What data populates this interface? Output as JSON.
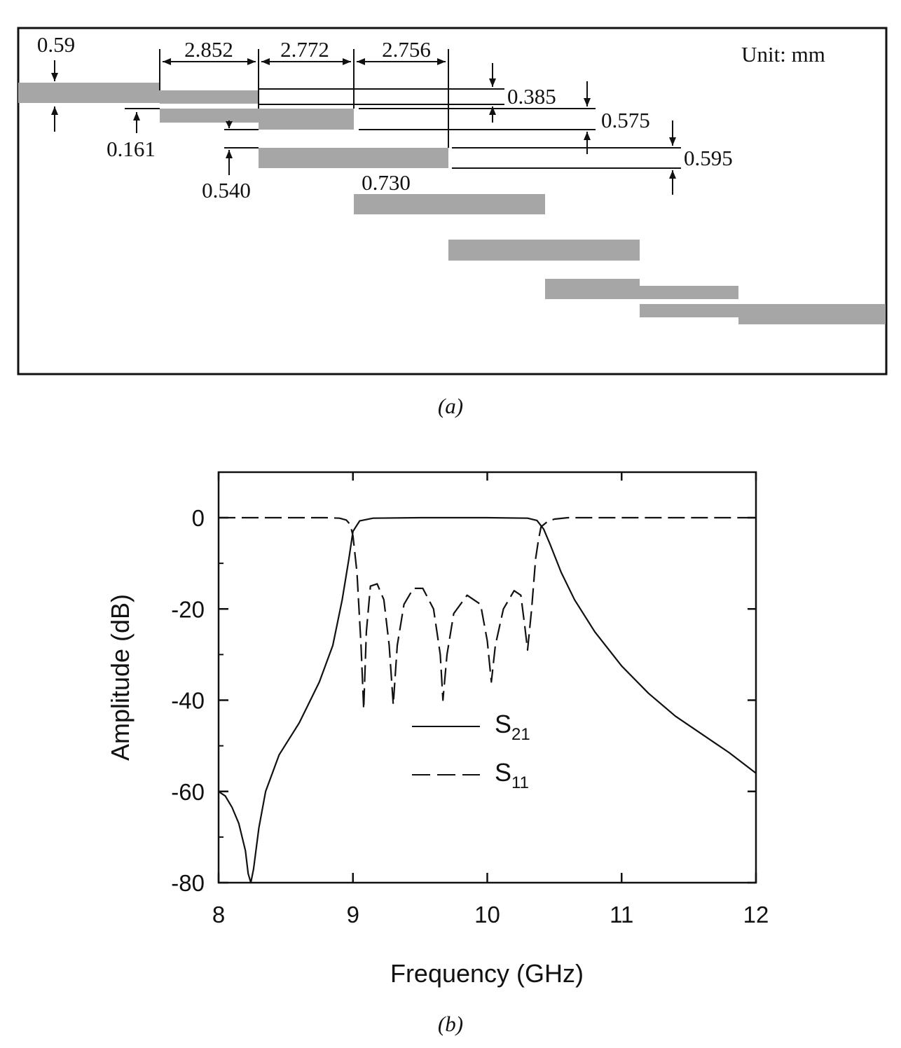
{
  "panel_a": {
    "unit_label": "Unit: mm",
    "caption": "(a)",
    "dims": {
      "w0": "0.59",
      "l1": "2.852",
      "l2": "2.772",
      "l3": "2.756",
      "g1": "0.161",
      "g2": "0.540",
      "g3": "0.730",
      "w1": "0.385",
      "w2": "0.575",
      "w3": "0.595"
    }
  },
  "panel_b": {
    "caption": "(b)",
    "chart_data": {
      "type": "line",
      "xlabel": "Frequency (GHz)",
      "ylabel": "Amplitude (dB)",
      "xlim": [
        8,
        12
      ],
      "ylim": [
        -80,
        10
      ],
      "xticks": [
        "8",
        "9",
        "10",
        "11",
        "12"
      ],
      "yticks": [
        "0",
        "-20",
        "-40",
        "-60",
        "-80"
      ],
      "legend_placement": "center",
      "series": [
        {
          "name": "S21",
          "label_main": "S",
          "label_sub": "21",
          "style": "solid",
          "points": [
            [
              8.0,
              -60
            ],
            [
              8.05,
              -61
            ],
            [
              8.1,
              -63.5
            ],
            [
              8.15,
              -67
            ],
            [
              8.2,
              -73
            ],
            [
              8.22,
              -78
            ],
            [
              8.24,
              -81
            ],
            [
              8.26,
              -77
            ],
            [
              8.3,
              -68
            ],
            [
              8.35,
              -60
            ],
            [
              8.45,
              -52
            ],
            [
              8.6,
              -45
            ],
            [
              8.75,
              -36
            ],
            [
              8.85,
              -28
            ],
            [
              8.92,
              -18
            ],
            [
              8.97,
              -9
            ],
            [
              9.0,
              -3
            ],
            [
              9.05,
              -0.7
            ],
            [
              9.15,
              -0.1
            ],
            [
              9.5,
              0
            ],
            [
              10.0,
              0
            ],
            [
              10.3,
              -0.1
            ],
            [
              10.37,
              -0.6
            ],
            [
              10.42,
              -2.5
            ],
            [
              10.47,
              -6
            ],
            [
              10.55,
              -12
            ],
            [
              10.65,
              -18
            ],
            [
              10.8,
              -25
            ],
            [
              11.0,
              -32.5
            ],
            [
              11.2,
              -38.5
            ],
            [
              11.4,
              -43.5
            ],
            [
              11.6,
              -47.5
            ],
            [
              11.8,
              -51.5
            ],
            [
              12.0,
              -56
            ]
          ]
        },
        {
          "name": "S11",
          "label_main": "S",
          "label_sub": "11",
          "style": "dashed",
          "points": [
            [
              8.0,
              0
            ],
            [
              8.8,
              0
            ],
            [
              8.9,
              -0.1
            ],
            [
              8.95,
              -0.5
            ],
            [
              8.98,
              -1.5
            ],
            [
              9.0,
              -4
            ],
            [
              9.03,
              -12
            ],
            [
              9.06,
              -28
            ],
            [
              9.08,
              -42
            ],
            [
              9.1,
              -25
            ],
            [
              9.13,
              -15
            ],
            [
              9.18,
              -14.5
            ],
            [
              9.23,
              -18
            ],
            [
              9.27,
              -28
            ],
            [
              9.3,
              -41
            ],
            [
              9.33,
              -28
            ],
            [
              9.38,
              -19
            ],
            [
              9.45,
              -15.5
            ],
            [
              9.52,
              -15.5
            ],
            [
              9.6,
              -20
            ],
            [
              9.65,
              -30
            ],
            [
              9.67,
              -40
            ],
            [
              9.7,
              -30
            ],
            [
              9.75,
              -21
            ],
            [
              9.85,
              -17
            ],
            [
              9.95,
              -19
            ],
            [
              10.0,
              -27
            ],
            [
              10.03,
              -36
            ],
            [
              10.06,
              -28
            ],
            [
              10.12,
              -20
            ],
            [
              10.2,
              -16
            ],
            [
              10.25,
              -17
            ],
            [
              10.28,
              -24
            ],
            [
              10.3,
              -29
            ],
            [
              10.33,
              -20
            ],
            [
              10.36,
              -9
            ],
            [
              10.38,
              -5
            ],
            [
              10.4,
              -2
            ],
            [
              10.45,
              -0.8
            ],
            [
              10.5,
              -0.3
            ],
            [
              10.6,
              0
            ],
            [
              12.0,
              0
            ]
          ]
        }
      ]
    }
  }
}
